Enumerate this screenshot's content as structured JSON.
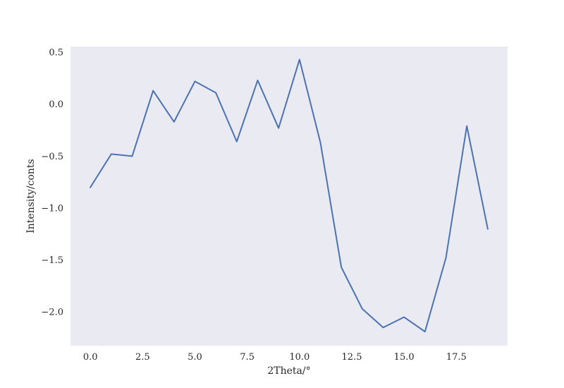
{
  "chart_data": {
    "type": "line",
    "title": "",
    "xlabel": "2Theta/°",
    "ylabel": "Intensity/conts",
    "xlim": [
      -0.95,
      19.95
    ],
    "ylim": [
      -2.325,
      0.555
    ],
    "xticks": [
      0.0,
      2.5,
      5.0,
      7.5,
      10.0,
      12.5,
      15.0,
      17.5
    ],
    "xtick_labels": [
      "0.0",
      "2.5",
      "5.0",
      "7.5",
      "10.0",
      "12.5",
      "15.0",
      "17.5"
    ],
    "yticks": [
      0.5,
      0.0,
      -0.5,
      -1.0,
      -1.5,
      -2.0
    ],
    "ytick_labels": [
      "0.5",
      "0.0",
      "−0.5",
      "−1.0",
      "−1.5",
      "−2.0"
    ],
    "grid": false,
    "background_color": "#eaeaf2",
    "series": [
      {
        "color": "#4c72b0",
        "x": [
          0,
          1,
          2,
          3,
          4,
          5,
          6,
          7,
          8,
          9,
          10,
          11,
          12,
          13,
          14,
          15,
          16,
          17,
          18,
          19
        ],
        "y": [
          -0.8,
          -0.48,
          -0.5,
          0.13,
          -0.17,
          0.22,
          0.11,
          -0.36,
          0.23,
          -0.23,
          0.43,
          -0.37,
          -1.57,
          -1.97,
          -2.15,
          -2.05,
          -2.19,
          -1.48,
          -0.21,
          -1.2
        ]
      }
    ]
  }
}
